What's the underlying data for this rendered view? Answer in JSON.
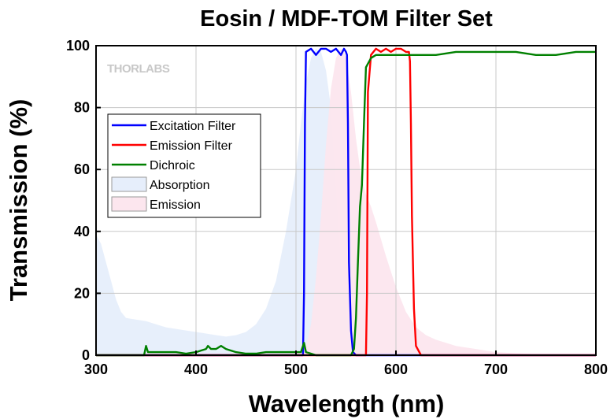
{
  "chart_data": {
    "type": "line",
    "title": "Eosin / MDF-TOM Filter Set",
    "xlabel": "Wavelength (nm)",
    "ylabel": "Transmission (%)",
    "xlim": [
      300,
      800
    ],
    "ylim": [
      0,
      100
    ],
    "xticks": [
      300,
      400,
      500,
      600,
      700,
      800
    ],
    "yticks": [
      0,
      20,
      40,
      60,
      80,
      100
    ],
    "grid": true,
    "legend_position": "middle-left",
    "watermark": "THORLABS",
    "series": [
      {
        "name": "Excitation Filter",
        "kind": "line",
        "color": "#0000ff",
        "x": [
          300,
          500,
          505,
          507,
          508,
          509,
          510,
          515,
          520,
          525,
          530,
          535,
          540,
          545,
          548,
          550,
          551,
          552,
          553,
          555,
          557,
          560,
          800
        ],
        "y": [
          0,
          0,
          0,
          0,
          20,
          75,
          98,
          99,
          97,
          99,
          99,
          98,
          99,
          97,
          99,
          98,
          97,
          75,
          30,
          8,
          1,
          0,
          0
        ]
      },
      {
        "name": "Emission Filter",
        "kind": "line",
        "color": "#ff0000",
        "x": [
          300,
          565,
          568,
          570,
          571,
          572,
          575,
          580,
          585,
          590,
          595,
          600,
          605,
          610,
          613,
          614,
          615,
          616,
          618,
          620,
          625,
          800
        ],
        "y": [
          0,
          0,
          0,
          0,
          20,
          85,
          97,
          99,
          98,
          99,
          98,
          99,
          99,
          98,
          98,
          95,
          75,
          45,
          15,
          3,
          0,
          0
        ]
      },
      {
        "name": "Dichroic",
        "kind": "line",
        "color": "#008000",
        "x": [
          300,
          340,
          345,
          348,
          350,
          352,
          355,
          360,
          370,
          380,
          390,
          400,
          410,
          412,
          415,
          420,
          425,
          430,
          440,
          450,
          460,
          470,
          480,
          490,
          500,
          505,
          508,
          510,
          515,
          520,
          530,
          540,
          550,
          555,
          558,
          560,
          562,
          564,
          566,
          568,
          570,
          575,
          580,
          590,
          600,
          620,
          640,
          660,
          680,
          700,
          720,
          740,
          760,
          780,
          800
        ],
        "y": [
          0,
          0,
          0,
          0,
          3,
          1,
          1,
          1,
          1,
          1,
          0.5,
          1,
          2,
          3,
          2,
          2,
          3,
          2,
          1,
          0.5,
          0.5,
          1,
          1,
          1,
          1,
          1,
          4,
          1,
          0.5,
          0,
          0,
          0,
          0,
          0,
          2,
          12,
          30,
          48,
          55,
          75,
          93,
          96,
          97,
          97,
          97,
          97,
          97,
          98,
          98,
          98,
          98,
          97,
          97,
          98,
          98
        ]
      },
      {
        "name": "Absorption",
        "kind": "area",
        "color": "#e6eefb",
        "x": [
          300,
          305,
          310,
          315,
          320,
          325,
          330,
          340,
          350,
          360,
          370,
          380,
          390,
          400,
          410,
          420,
          430,
          440,
          450,
          460,
          470,
          480,
          490,
          500,
          505,
          510,
          515,
          520,
          525,
          530,
          535,
          540,
          545,
          550,
          555,
          560,
          565,
          570,
          580,
          600
        ],
        "y": [
          39,
          36,
          30,
          24,
          18,
          14,
          12,
          11.5,
          11,
          10,
          9,
          8.5,
          8,
          7.5,
          7,
          6.5,
          6,
          6.5,
          7.5,
          10,
          15,
          24,
          40,
          60,
          75,
          88,
          96,
          99,
          98,
          92,
          80,
          55,
          30,
          14,
          6,
          3,
          1.5,
          0.8,
          0.3,
          0
        ]
      },
      {
        "name": "Emission",
        "kind": "area",
        "color": "#fce6ee",
        "x": [
          500,
          510,
          515,
          520,
          525,
          530,
          535,
          540,
          545,
          548,
          550,
          555,
          560,
          565,
          570,
          575,
          580,
          590,
          600,
          610,
          620,
          630,
          640,
          650,
          660,
          680,
          700,
          720,
          740,
          760,
          780
        ],
        "y": [
          0,
          3,
          10,
          25,
          45,
          68,
          86,
          96,
          99,
          98,
          96,
          85,
          70,
          58,
          52,
          48,
          43,
          32,
          22,
          14,
          9,
          6.5,
          5,
          4,
          3,
          2,
          1,
          0.6,
          0.3,
          0.1,
          0
        ]
      }
    ]
  }
}
